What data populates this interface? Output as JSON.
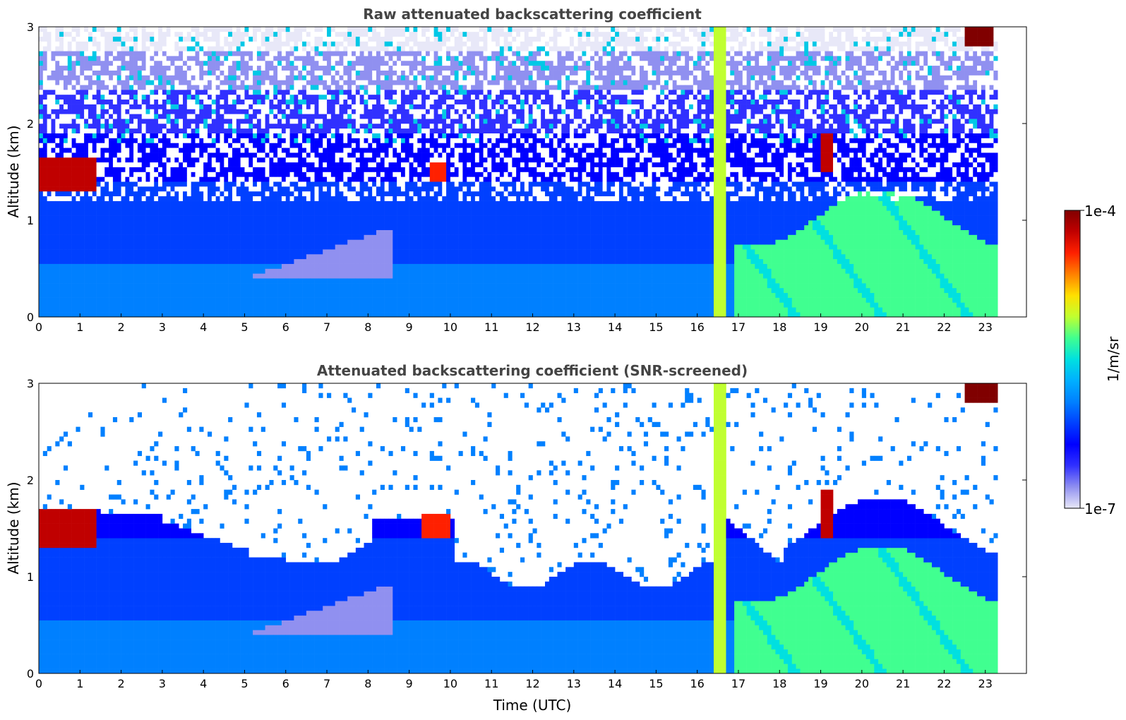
{
  "chart_data": [
    {
      "type": "heatmap",
      "title": "Raw attenuated backscattering coefficient",
      "xlabel": "",
      "ylabel": "Altitude (km)",
      "xlim": [
        0,
        24
      ],
      "ylim": [
        0,
        3
      ],
      "x_ticks": [
        "0",
        "1",
        "2",
        "3",
        "4",
        "5",
        "6",
        "7",
        "8",
        "9",
        "10",
        "11",
        "12",
        "13",
        "14",
        "15",
        "16",
        "17",
        "18",
        "19",
        "20",
        "21",
        "22",
        "23"
      ],
      "y_ticks": [
        "0",
        "1",
        "2",
        "3"
      ],
      "data_end_hour": 23.3,
      "screening": "raw",
      "features": [
        {
          "kind": "cloud",
          "t_start": 0.0,
          "t_end": 1.4,
          "alt_bottom": 1.3,
          "alt_top": 1.65,
          "log10_beta": -4.2
        },
        {
          "kind": "cloud",
          "t_start": 9.5,
          "t_end": 9.9,
          "alt_bottom": 1.4,
          "alt_top": 1.6,
          "log10_beta": -4.4
        },
        {
          "kind": "precipitation_column",
          "t_start": 16.4,
          "t_end": 16.7,
          "alt_bottom": 0.0,
          "alt_top": 3.0,
          "log10_beta": -5.0
        },
        {
          "kind": "cloud",
          "t_start": 19.0,
          "t_end": 19.3,
          "alt_bottom": 1.5,
          "alt_top": 1.9,
          "log10_beta": -4.3
        },
        {
          "kind": "cloud",
          "t_start": 22.5,
          "t_end": 23.2,
          "alt_bottom": 2.8,
          "alt_top": 3.0,
          "log10_beta": -4.1
        }
      ]
    },
    {
      "type": "heatmap",
      "title": "Attenuated backscattering coefficient (SNR-screened)",
      "xlabel": "Time (UTC)",
      "ylabel": "Altitude (km)",
      "xlim": [
        0,
        24
      ],
      "ylim": [
        0,
        3
      ],
      "x_ticks": [
        "0",
        "1",
        "2",
        "3",
        "4",
        "5",
        "6",
        "7",
        "8",
        "9",
        "10",
        "11",
        "12",
        "13",
        "14",
        "15",
        "16",
        "17",
        "18",
        "19",
        "20",
        "21",
        "22",
        "23"
      ],
      "y_ticks": [
        "0",
        "1",
        "2",
        "3"
      ],
      "data_end_hour": 23.3,
      "screening": "snr",
      "features": [
        {
          "kind": "cloud",
          "t_start": 0.0,
          "t_end": 1.4,
          "alt_bottom": 1.3,
          "alt_top": 1.7,
          "log10_beta": -4.2
        },
        {
          "kind": "cloud",
          "t_start": 9.3,
          "t_end": 10.0,
          "alt_bottom": 1.4,
          "alt_top": 1.65,
          "log10_beta": -4.5
        },
        {
          "kind": "precipitation_column",
          "t_start": 16.4,
          "t_end": 16.7,
          "alt_bottom": 0.0,
          "alt_top": 3.0,
          "log10_beta": -5.0
        },
        {
          "kind": "cloud",
          "t_start": 19.0,
          "t_end": 19.3,
          "alt_bottom": 1.4,
          "alt_top": 1.9,
          "log10_beta": -4.3
        },
        {
          "kind": "cloud",
          "t_start": 22.5,
          "t_end": 23.3,
          "alt_bottom": 2.8,
          "alt_top": 3.0,
          "log10_beta": -4.1
        }
      ]
    }
  ],
  "colorbar": {
    "label": "1/m/sr",
    "max_label": "1e-4",
    "min_label": "1e-7",
    "colormap": [
      "#e8e8f8",
      "#9090f0",
      "#3030ff",
      "#0000ff",
      "#0040ff",
      "#0080ff",
      "#00b0ff",
      "#00e0e0",
      "#40ff90",
      "#c0ff30",
      "#ffe000",
      "#ff8000",
      "#ff2000",
      "#c00000",
      "#800000"
    ]
  }
}
